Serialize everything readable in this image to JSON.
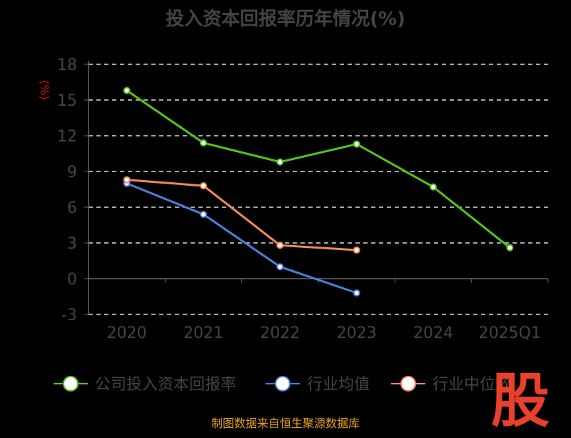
{
  "chart_data": {
    "type": "line",
    "title": "投入资本回报率历年情况(%)",
    "ylabel": "(%)",
    "categories": [
      "2020",
      "2021",
      "2022",
      "2023",
      "2024",
      "2025Q1"
    ],
    "ylim": [
      -3,
      18
    ],
    "yticks": [
      -3,
      0,
      3,
      6,
      9,
      12,
      15,
      18
    ],
    "grid": true,
    "legend_position": "bottom",
    "series": [
      {
        "name": "公司投入资本回报率",
        "color": "#52c41a",
        "values": [
          15.8,
          11.4,
          9.8,
          11.3,
          7.7,
          2.6
        ]
      },
      {
        "name": "行业均值",
        "color": "#4a7fdc",
        "values": [
          8.0,
          5.4,
          1.0,
          -1.2,
          null,
          null
        ]
      },
      {
        "name": "行业中位数",
        "color": "#f4875a",
        "values": [
          8.3,
          7.8,
          2.8,
          2.4,
          null,
          null
        ]
      }
    ]
  },
  "footer": "制图数据来自恒生聚源数据库",
  "watermark": "股"
}
